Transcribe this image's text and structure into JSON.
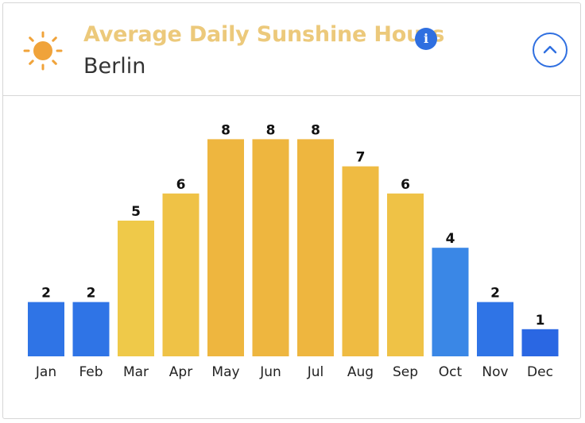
{
  "header": {
    "title": "Average Daily Sunshine Hours",
    "subtitle": "Berlin",
    "info_icon": "info-icon",
    "collapse_icon": "chevron-up-icon",
    "sun_icon": "sun-icon",
    "info_glyph": "i"
  },
  "colors": {
    "title": "#ecc97b",
    "accent": "#2f6fe0",
    "sun": "#f0a33a"
  },
  "chart_data": {
    "type": "bar",
    "categories": [
      "Jan",
      "Feb",
      "Mar",
      "Apr",
      "May",
      "Jun",
      "Jul",
      "Aug",
      "Sep",
      "Oct",
      "Nov",
      "Dec"
    ],
    "values": [
      2,
      2,
      5,
      6,
      8,
      8,
      8,
      7,
      6,
      4,
      2,
      1
    ],
    "colors": [
      "#2f74e6",
      "#2f74e6",
      "#efc949",
      "#efc246",
      "#eeb63f",
      "#eeb63f",
      "#eeb63f",
      "#efbb42",
      "#efc246",
      "#3a87e6",
      "#2f74e6",
      "#2a67e3"
    ],
    "ylim": [
      0,
      8
    ],
    "grid": false,
    "legend": "none",
    "data_labels": true
  }
}
